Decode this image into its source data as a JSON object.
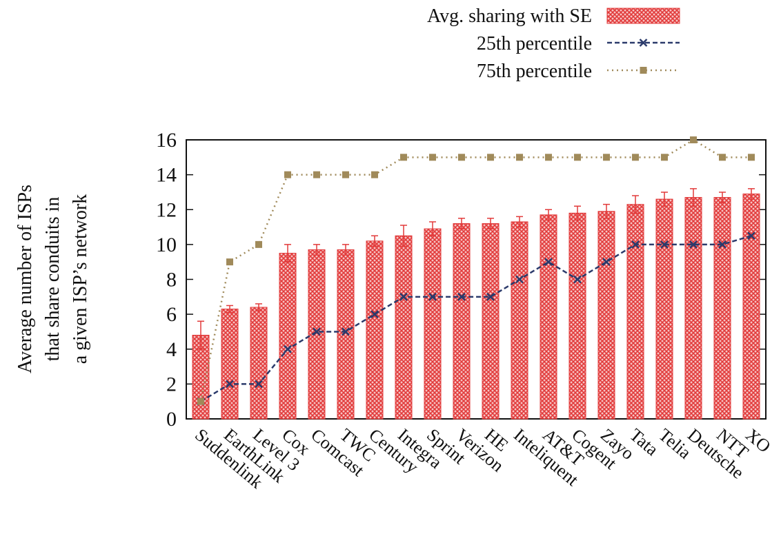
{
  "chart_data": {
    "type": "bar",
    "y_label": [
      "Average number of ISPs",
      "that share conduits in",
      "a given ISP’s network"
    ],
    "categories": [
      "Suddenlink",
      "EarthLink",
      "Level 3",
      "Cox",
      "Comcast",
      "TWC",
      "Century",
      "Integra",
      "Sprint",
      "Verizon",
      "HE",
      "Inteliquent",
      "AT&T",
      "Cogent",
      "Zayo",
      "Tata",
      "Telia",
      "Deutsche",
      "NTT",
      "XO"
    ],
    "series": [
      {
        "name": "Avg. sharing with SE",
        "type": "bar",
        "color": "#e23a3a",
        "values": [
          4.8,
          6.3,
          6.4,
          9.5,
          9.7,
          9.7,
          10.2,
          10.5,
          10.9,
          11.2,
          11.2,
          11.3,
          11.7,
          11.8,
          11.9,
          12.3,
          12.6,
          12.7,
          12.7,
          12.9
        ],
        "errors": [
          0.8,
          0.2,
          0.2,
          0.5,
          0.3,
          0.3,
          0.3,
          0.6,
          0.4,
          0.3,
          0.3,
          0.3,
          0.3,
          0.4,
          0.4,
          0.5,
          0.4,
          0.5,
          0.3,
          0.3
        ]
      },
      {
        "name": "25th percentile",
        "type": "line",
        "color": "#2b3a6b",
        "marker": "x",
        "values": [
          1,
          2,
          2,
          4,
          5,
          5,
          6,
          7,
          7,
          7,
          7,
          8,
          9,
          8,
          9,
          10,
          10,
          10,
          10,
          10.5
        ]
      },
      {
        "name": "75th percentile",
        "type": "line",
        "color": "#a08a5a",
        "marker": "square",
        "values": [
          1,
          9,
          10,
          14,
          14,
          14,
          14,
          15,
          15,
          15,
          15,
          15,
          15,
          15,
          15,
          15,
          15,
          16,
          15,
          15
        ]
      }
    ],
    "ylim": [
      0,
      16
    ],
    "yticks": [
      0,
      2,
      4,
      6,
      8,
      10,
      12,
      14,
      16
    ],
    "legend": "top-right"
  }
}
